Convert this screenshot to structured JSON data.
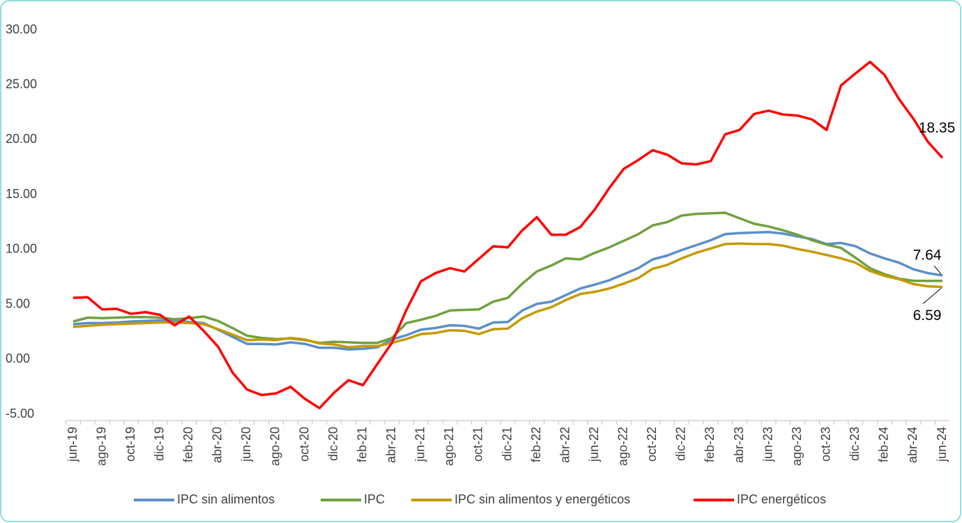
{
  "chart_data": {
    "type": "line",
    "categories": [
      "jun-19",
      null,
      "ago-19",
      null,
      "oct-19",
      null,
      "dic-19",
      null,
      "feb-20",
      null,
      "abr-20",
      null,
      "jun-20",
      null,
      "ago-20",
      null,
      "oct-20",
      null,
      "dic-20",
      null,
      "feb-21",
      null,
      "abr-21",
      null,
      "jun-21",
      null,
      "ago-21",
      null,
      "oct-21",
      null,
      "dic-21",
      null,
      "feb-22",
      null,
      "abr-22",
      null,
      "jun-22",
      null,
      "ago-22",
      null,
      "oct-22",
      null,
      "dic-22",
      null,
      "feb-23",
      null,
      "abr-23",
      null,
      "jun-23",
      null,
      "ago-23",
      null,
      "oct-23",
      null,
      "dic-23",
      null,
      "feb-24",
      null,
      "abr-24",
      null,
      "jun-24"
    ],
    "series": [
      {
        "name": "IPC sin alimentos",
        "color": "#5b8fc7",
        "data_labels": "last",
        "values": [
          3.2,
          3.3,
          3.3,
          3.35,
          3.45,
          3.5,
          3.55,
          3.55,
          3.4,
          3.3,
          2.7,
          2.05,
          1.4,
          1.4,
          1.35,
          1.55,
          1.4,
          1.05,
          1.05,
          0.9,
          0.95,
          1.1,
          1.8,
          2.2,
          2.7,
          2.85,
          3.1,
          3.05,
          2.8,
          3.35,
          3.4,
          4.45,
          5.05,
          5.25,
          5.85,
          6.45,
          6.8,
          7.2,
          7.75,
          8.3,
          9.1,
          9.45,
          9.95,
          10.4,
          10.85,
          11.4,
          11.5,
          11.55,
          11.6,
          11.45,
          11.2,
          10.95,
          10.5,
          10.6,
          10.3,
          9.65,
          9.2,
          8.8,
          8.2,
          7.85,
          7.64
        ]
      },
      {
        "name": "IPC",
        "color": "#70a040",
        "values": [
          3.45,
          3.8,
          3.75,
          3.8,
          3.85,
          3.85,
          3.8,
          3.65,
          3.75,
          3.9,
          3.5,
          2.85,
          2.15,
          1.95,
          1.85,
          1.9,
          1.75,
          1.5,
          1.6,
          1.55,
          1.5,
          1.5,
          1.95,
          3.3,
          3.6,
          3.95,
          4.45,
          4.5,
          4.55,
          5.25,
          5.6,
          6.9,
          8.0,
          8.55,
          9.2,
          9.1,
          9.7,
          10.2,
          10.8,
          11.4,
          12.2,
          12.5,
          13.1,
          13.25,
          13.3,
          13.35,
          12.85,
          12.35,
          12.1,
          11.75,
          11.35,
          10.85,
          10.45,
          10.15,
          9.25,
          8.3,
          7.75,
          7.35,
          7.15,
          7.15,
          7.15
        ]
      },
      {
        "name": "IPC sin alimentos y energéticos",
        "color": "#c49a00",
        "data_labels": "last",
        "values": [
          2.95,
          3.05,
          3.15,
          3.2,
          3.25,
          3.3,
          3.35,
          3.35,
          3.3,
          3.2,
          2.75,
          2.25,
          1.75,
          1.8,
          1.75,
          1.95,
          1.8,
          1.45,
          1.35,
          1.1,
          1.2,
          1.2,
          1.5,
          1.85,
          2.3,
          2.4,
          2.65,
          2.6,
          2.3,
          2.75,
          2.8,
          3.75,
          4.35,
          4.75,
          5.4,
          5.95,
          6.15,
          6.45,
          6.9,
          7.4,
          8.25,
          8.6,
          9.2,
          9.7,
          10.1,
          10.5,
          10.55,
          10.5,
          10.5,
          10.35,
          10.05,
          9.8,
          9.5,
          9.2,
          8.8,
          8.05,
          7.6,
          7.3,
          6.85,
          6.65,
          6.59
        ]
      },
      {
        "name": "IPC energéticos",
        "color": "#ff0000",
        "data_labels": "last",
        "values": [
          5.6,
          5.65,
          4.55,
          4.6,
          4.15,
          4.3,
          4.05,
          3.1,
          3.9,
          2.6,
          1.15,
          -1.2,
          -2.75,
          -3.25,
          -3.1,
          -2.5,
          -3.6,
          -4.45,
          -3.05,
          -1.9,
          -2.35,
          -0.4,
          1.5,
          4.5,
          7.1,
          7.85,
          8.3,
          8.0,
          9.15,
          10.3,
          10.2,
          11.75,
          12.95,
          11.35,
          11.35,
          12.05,
          13.65,
          15.6,
          17.35,
          18.15,
          19.05,
          18.65,
          17.85,
          17.75,
          18.05,
          20.5,
          20.9,
          22.35,
          22.65,
          22.3,
          22.2,
          21.85,
          20.9,
          24.95,
          26.05,
          27.1,
          25.9,
          23.7,
          21.9,
          19.8,
          18.35
        ]
      }
    ],
    "ylim": [
      -5,
      30
    ],
    "yticks": [
      {
        "value": -5,
        "label": "-5.00"
      },
      {
        "value": 0,
        "label": "0.00"
      },
      {
        "value": 5,
        "label": "5.00"
      },
      {
        "value": 10,
        "label": "10.00"
      },
      {
        "value": 15,
        "label": "15.00"
      },
      {
        "value": 20,
        "label": "20.00"
      },
      {
        "value": 25,
        "label": "25.00"
      },
      {
        "value": 30,
        "label": "30.00"
      }
    ],
    "grid": false,
    "legend": "bottom"
  }
}
